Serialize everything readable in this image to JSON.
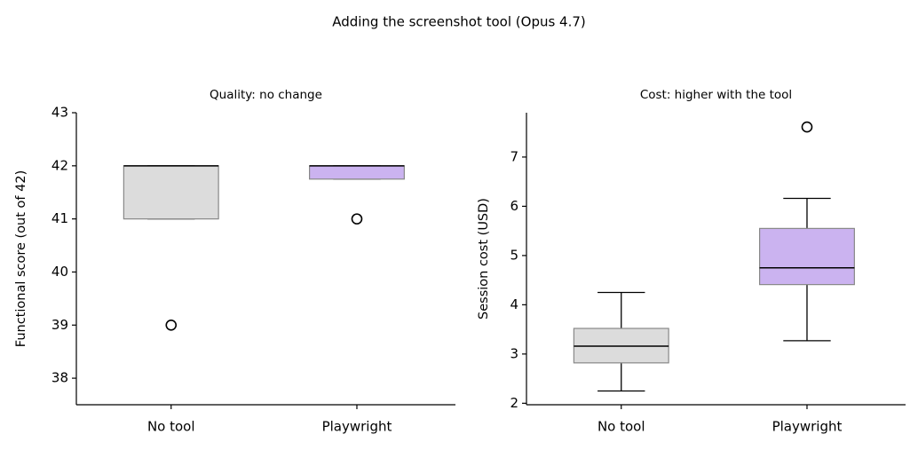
{
  "title": "Adding the screenshot tool (Opus 4.7)",
  "chart_data": [
    {
      "type": "box",
      "title": "Quality: no change",
      "ylabel": "Functional score (out of 42)",
      "categories": [
        "No tool",
        "Playwright"
      ],
      "boxes": [
        {
          "whisker_low": 41,
          "q1": 41,
          "median": 42,
          "q3": 42,
          "whisker_high": 42,
          "outliers": [
            39
          ],
          "color": "#dcdcdc"
        },
        {
          "whisker_low": 41.75,
          "q1": 41.75,
          "median": 42,
          "q3": 42,
          "whisker_high": 42,
          "outliers": [
            41
          ],
          "color": "#cbb3f0"
        }
      ],
      "ylim": [
        37.5,
        43
      ],
      "yticks": [
        38,
        39,
        40,
        41,
        42,
        43
      ]
    },
    {
      "type": "box",
      "title": "Cost: higher with the tool",
      "ylabel": "Session cost (USD)",
      "categories": [
        "No tool",
        "Playwright"
      ],
      "boxes": [
        {
          "whisker_low": 2.25,
          "q1": 2.82,
          "median": 3.16,
          "q3": 3.52,
          "whisker_high": 4.25,
          "outliers": [],
          "color": "#dcdcdc"
        },
        {
          "whisker_low": 3.27,
          "q1": 4.41,
          "median": 4.75,
          "q3": 5.55,
          "whisker_high": 6.16,
          "outliers": [
            7.61
          ],
          "color": "#cbb3f0"
        }
      ],
      "ylim": [
        1.97,
        7.9
      ],
      "yticks": [
        2,
        3,
        4,
        5,
        6,
        7
      ]
    }
  ]
}
